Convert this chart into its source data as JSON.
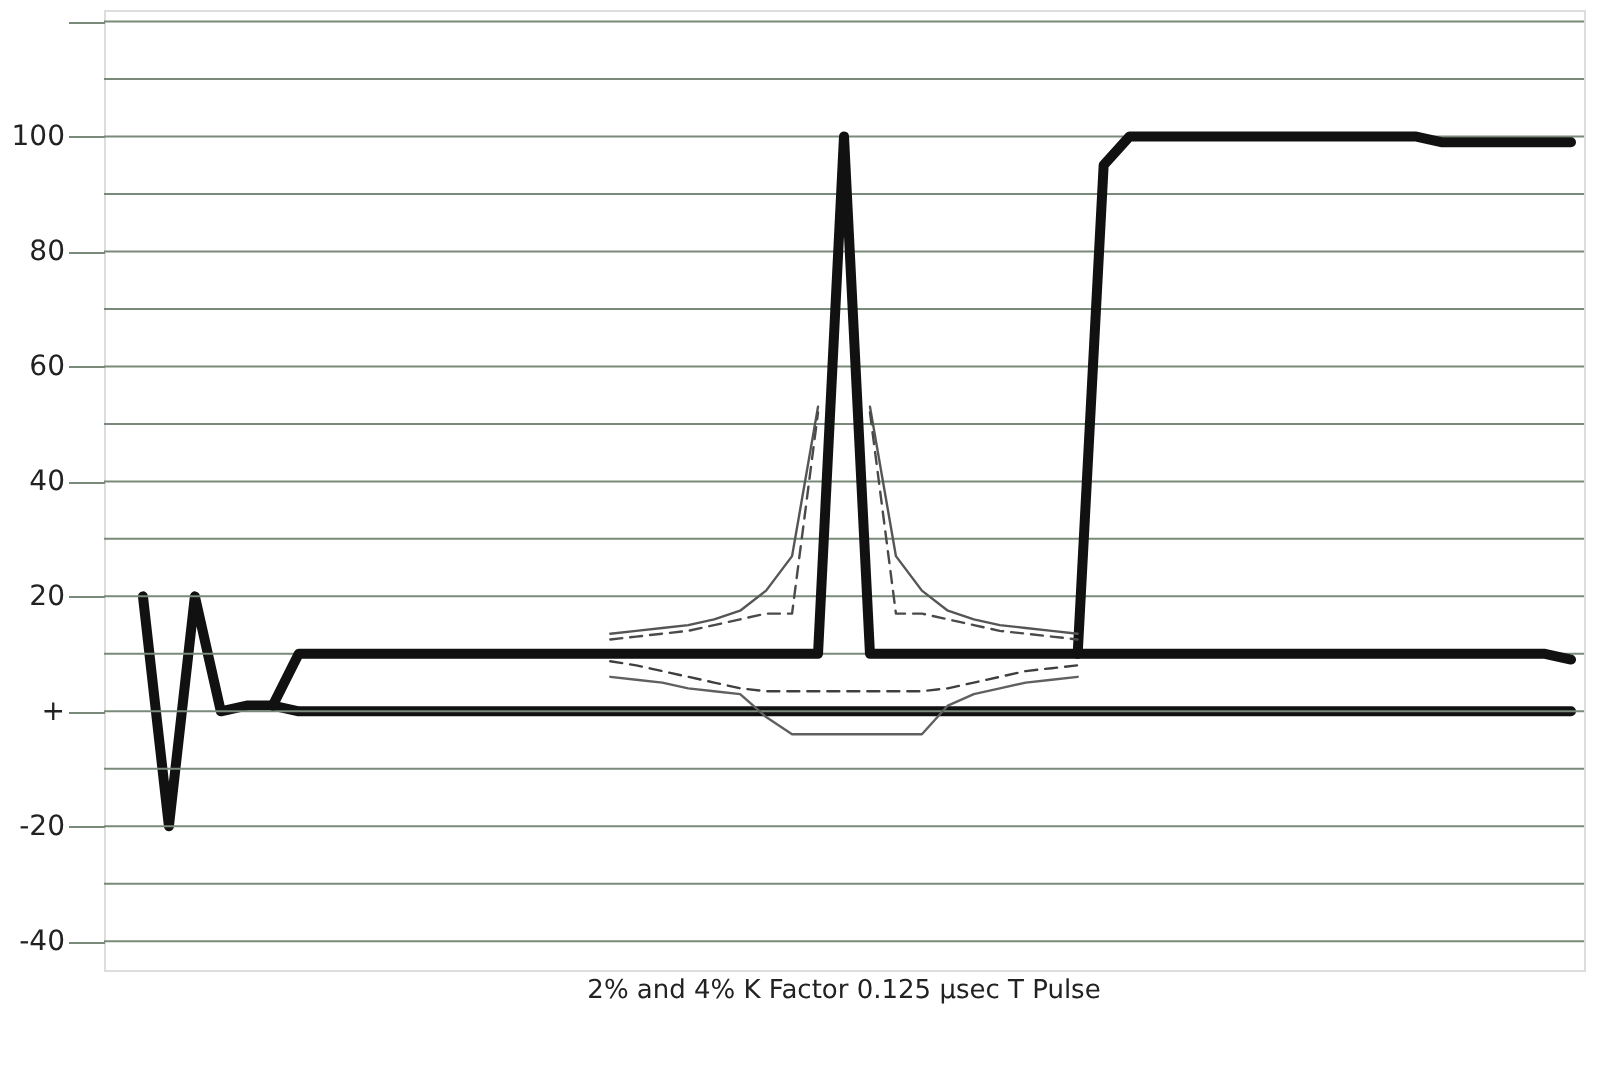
{
  "chart_data": {
    "type": "line",
    "annotations": [
      "2% and 4% K Factor 0.125 µsec T Pulse"
    ],
    "categories": [
      null,
      null,
      null,
      null,
      null,
      null,
      null,
      null,
      null,
      null,
      null,
      null,
      null,
      null,
      null,
      null,
      null,
      null,
      null,
      null,
      null,
      null,
      null,
      null,
      null,
      null,
      null,
      null,
      null,
      null,
      null,
      null,
      null,
      null,
      null,
      null,
      null,
      null,
      null,
      null,
      null,
      null,
      null,
      null,
      null,
      null,
      null,
      null,
      null,
      null,
      null,
      null,
      null,
      null,
      null,
      null,
      null
    ],
    "ylim": [
      -45,
      122
    ],
    "yticks": [
      {
        "value": 120,
        "label": null
      },
      {
        "value": 110,
        "label": null
      },
      100,
      {
        "value": 90,
        "label": null
      },
      80,
      {
        "value": 70,
        "label": null
      },
      60,
      {
        "value": 50,
        "label": null
      },
      40,
      {
        "value": 30,
        "label": null
      },
      20,
      {
        "value": 10,
        "label": null
      },
      {
        "value": 0,
        "label": "+"
      },
      {
        "value": -10,
        "label": null
      },
      -20,
      {
        "value": -30,
        "label": null
      },
      -40
    ],
    "tick_labels": "y",
    "grid": "y",
    "series": [
      {
        "color": "#111111",
        "values": [
          null,
          20,
          -20,
          20,
          0,
          1,
          1,
          0,
          0,
          0,
          0,
          0,
          0,
          0,
          0,
          0,
          0,
          0,
          0,
          0,
          0,
          0,
          0,
          0,
          0,
          0,
          0,
          0,
          0,
          0,
          0,
          0,
          0,
          0,
          0,
          0,
          0,
          0,
          0,
          0,
          0,
          0,
          0,
          0,
          0,
          0,
          0,
          0,
          0,
          0,
          0,
          0,
          0,
          0,
          0,
          0,
          0
        ]
      },
      {
        "color": "#111111",
        "values": [
          null,
          null,
          null,
          null,
          null,
          null,
          1,
          10,
          10,
          10,
          10,
          10,
          10,
          10,
          10,
          10,
          10,
          10,
          10,
          10,
          10,
          10,
          10,
          10,
          10,
          10,
          10,
          10,
          100,
          10,
          10,
          10,
          10,
          10,
          10,
          10,
          10,
          10,
          10,
          10,
          10,
          10,
          10,
          10,
          10,
          10,
          10,
          10,
          10,
          10,
          10,
          10,
          10,
          10,
          10,
          10,
          9
        ]
      },
      {
        "color": "#111111",
        "values": [
          null,
          null,
          null,
          null,
          null,
          null,
          null,
          null,
          null,
          null,
          null,
          null,
          null,
          null,
          null,
          null,
          null,
          null,
          null,
          null,
          null,
          null,
          null,
          null,
          null,
          null,
          null,
          null,
          null,
          null,
          null,
          null,
          null,
          null,
          null,
          null,
          null,
          10,
          95,
          100,
          100,
          100,
          100,
          100,
          100,
          100,
          100,
          100,
          100,
          100,
          100,
          99,
          99,
          99,
          99,
          99,
          99
        ]
      },
      {
        "color": "#555555",
        "line_style": "solid",
        "values": [
          null,
          null,
          null,
          null,
          null,
          null,
          null,
          null,
          null,
          null,
          null,
          null,
          null,
          null,
          null,
          null,
          null,
          null,
          null,
          13.5,
          14,
          14.5,
          15,
          16,
          17.5,
          21,
          27,
          53,
          null,
          53,
          27,
          21,
          17.5,
          16,
          15,
          14.5,
          14,
          13.5,
          null,
          null,
          null,
          null,
          null,
          null,
          null,
          null,
          null,
          null,
          null,
          null,
          null,
          null,
          null,
          null,
          null,
          null,
          null
        ]
      },
      {
        "color": "#4a4a4a",
        "line_style": "dashed",
        "values": [
          null,
          null,
          null,
          null,
          null,
          null,
          null,
          null,
          null,
          null,
          null,
          null,
          null,
          null,
          null,
          null,
          null,
          null,
          null,
          12.5,
          13,
          13.5,
          14,
          15,
          16,
          17,
          17,
          52,
          null,
          52,
          17,
          17,
          16,
          15,
          14,
          13.5,
          13,
          12.5,
          null,
          null,
          null,
          null,
          null,
          null,
          null,
          null,
          null,
          null,
          null,
          null,
          null,
          null,
          null,
          null,
          null,
          null,
          null
        ]
      },
      {
        "color": "#606060",
        "line_style": "solid",
        "values": [
          null,
          null,
          null,
          null,
          null,
          null,
          null,
          null,
          null,
          null,
          null,
          null,
          null,
          null,
          null,
          null,
          null,
          null,
          null,
          6,
          5.5,
          5,
          4,
          3.5,
          3,
          -1,
          -4,
          -4,
          -4,
          -4,
          -4,
          -4,
          1,
          3,
          4,
          5,
          5.5,
          6,
          null,
          null,
          null,
          null,
          null,
          null,
          null,
          null,
          null,
          null,
          null,
          null,
          null,
          null,
          null,
          null,
          null,
          null,
          null
        ]
      },
      {
        "color": "#3f3f3f",
        "line_style": "dashed",
        "values": [
          null,
          null,
          null,
          null,
          null,
          null,
          null,
          null,
          null,
          null,
          null,
          null,
          null,
          null,
          null,
          null,
          null,
          null,
          null,
          8.7,
          8,
          7,
          6,
          5,
          4,
          3.5,
          3.5,
          3.5,
          3.5,
          3.5,
          3.5,
          3.5,
          4,
          5,
          6,
          7,
          7.5,
          8,
          null,
          null,
          null,
          null,
          null,
          null,
          null,
          null,
          null,
          null,
          null,
          null,
          null,
          null,
          null,
          null,
          null,
          null,
          null
        ]
      }
    ]
  }
}
